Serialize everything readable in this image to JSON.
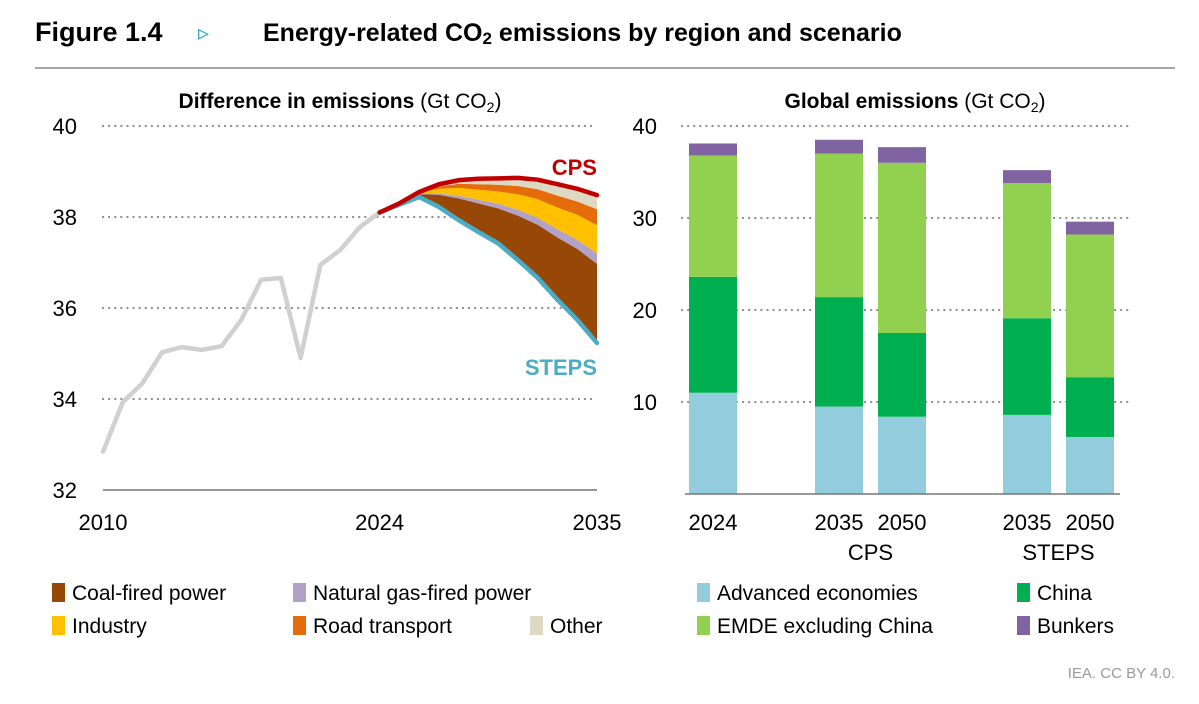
{
  "header": {
    "figure_label": "Figure 1.4",
    "marker": "▹",
    "title_pre": "Energy-related CO",
    "title_sub": "2",
    "title_post": " emissions by region and scenario"
  },
  "footer": {
    "credit": "IEA. CC BY 4.0."
  },
  "colors": {
    "history": "#d0d0d0",
    "cps": "#c00000",
    "steps": "#4bacc6",
    "coal": "#974706",
    "gas": "#b3a2c7",
    "industry": "#ffc000",
    "road": "#e46c0a",
    "other": "#ddd9c3",
    "advanced": "#93cddd",
    "china": "#00b050",
    "emde": "#92d050",
    "bunkers": "#8064a2",
    "marker": "#31a0c0"
  },
  "chart_data": [
    {
      "type": "area",
      "title": "Difference in emissions",
      "unit": "(Gt CO",
      "unit_sub": "2",
      "unit_close": ")",
      "ylim": [
        32,
        40
      ],
      "yticks": [
        "32",
        "34",
        "36",
        "38",
        "40"
      ],
      "xlim": [
        2010,
        2035
      ],
      "xticks": [
        "2010",
        "2024",
        "2035"
      ],
      "grid": true,
      "history": {
        "x": [
          2010,
          2011,
          2012,
          2013,
          2014,
          2015,
          2016,
          2017,
          2018,
          2019,
          2020,
          2021,
          2022,
          2023,
          2024
        ],
        "y": [
          32.84,
          33.93,
          34.35,
          35.03,
          35.14,
          35.08,
          35.16,
          35.74,
          36.62,
          36.66,
          34.9,
          36.95,
          37.27,
          37.78,
          38.1
        ]
      },
      "projection_years": [
        2024,
        2025,
        2026,
        2027,
        2028,
        2029,
        2030,
        2031,
        2032,
        2033,
        2034,
        2035
      ],
      "cps": {
        "label": "CPS",
        "y": [
          38.1,
          38.3,
          38.55,
          38.72,
          38.81,
          38.84,
          38.85,
          38.86,
          38.82,
          38.72,
          38.62,
          38.48
        ]
      },
      "steps": {
        "label": "STEPS",
        "y": [
          38.1,
          38.27,
          38.44,
          38.22,
          37.93,
          37.67,
          37.42,
          37.05,
          36.66,
          36.18,
          35.74,
          35.23
        ]
      },
      "series": [
        {
          "key": "coal",
          "name": "Coal-fired power",
          "values": [
            0,
            0.02,
            0.06,
            0.27,
            0.48,
            0.63,
            0.77,
            0.98,
            1.17,
            1.37,
            1.56,
            1.74
          ]
        },
        {
          "key": "gas",
          "name": "Natural gas-fired power",
          "values": [
            0,
            0,
            0.01,
            0.03,
            0.06,
            0.08,
            0.1,
            0.13,
            0.15,
            0.18,
            0.2,
            0.23
          ]
        },
        {
          "key": "industry",
          "name": "Industry",
          "values": [
            0,
            0.01,
            0.02,
            0.1,
            0.17,
            0.22,
            0.27,
            0.34,
            0.41,
            0.48,
            0.55,
            0.62
          ]
        },
        {
          "key": "road",
          "name": "Road transport",
          "values": [
            0,
            0,
            0.01,
            0.05,
            0.09,
            0.12,
            0.15,
            0.18,
            0.22,
            0.26,
            0.29,
            0.35
          ]
        },
        {
          "key": "other",
          "name": "Other",
          "values": [
            0,
            0,
            0.01,
            0.05,
            0.08,
            0.12,
            0.14,
            0.18,
            0.21,
            0.25,
            0.28,
            0.31
          ]
        }
      ]
    },
    {
      "type": "bar",
      "stacked": true,
      "title": "Global emissions",
      "unit": "(Gt CO",
      "unit_sub": "2",
      "unit_close": ")",
      "ylim": [
        0,
        40
      ],
      "yticks": [
        "10",
        "20",
        "30",
        "40"
      ],
      "grid": true,
      "categories": [
        "2024",
        "2035",
        "2050",
        "2035",
        "2050"
      ],
      "groups": [
        {
          "label": "CPS",
          "members": [
            1,
            2
          ]
        },
        {
          "label": "STEPS",
          "members": [
            3,
            4
          ]
        }
      ],
      "series": [
        {
          "key": "advanced",
          "name": "Advanced economies",
          "values": [
            11.0,
            9.5,
            8.4,
            8.6,
            6.2
          ]
        },
        {
          "key": "china",
          "name": "China",
          "values": [
            12.6,
            11.9,
            9.1,
            10.5,
            6.5
          ]
        },
        {
          "key": "emde",
          "name": "EMDE excluding China",
          "values": [
            13.2,
            15.6,
            18.5,
            14.7,
            15.5
          ]
        },
        {
          "key": "bunkers",
          "name": "Bunkers",
          "values": [
            1.3,
            1.5,
            1.7,
            1.4,
            1.4
          ]
        }
      ]
    }
  ]
}
